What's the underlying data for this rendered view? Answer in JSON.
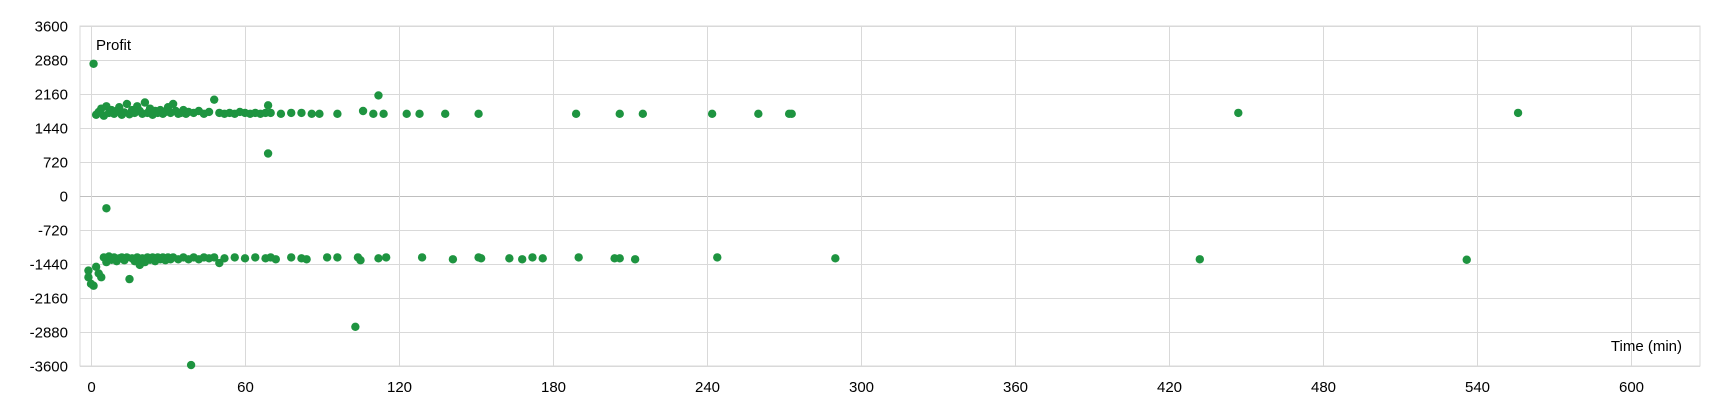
{
  "chart_data": {
    "type": "scatter",
    "title": "",
    "xlabel": "Time (min)",
    "ylabel": "Profit",
    "xlim": [
      -2,
      620
    ],
    "ylim": [
      -3600,
      3600
    ],
    "x_ticks": [
      0,
      60,
      120,
      180,
      240,
      300,
      360,
      420,
      480,
      540,
      600
    ],
    "y_ticks": [
      3600,
      2880,
      2160,
      1440,
      720,
      0,
      -720,
      -1440,
      -2160,
      -2880,
      -3600
    ],
    "grid": true,
    "legend": "none",
    "marker_color": "#1e9440",
    "series": [
      {
        "values": [
          [
            1,
            2800
          ],
          [
            2,
            1720
          ],
          [
            3,
            1780
          ],
          [
            4,
            1850
          ],
          [
            5,
            1700
          ],
          [
            6,
            1900
          ],
          [
            7,
            1760
          ],
          [
            8,
            1820
          ],
          [
            9,
            1740
          ],
          [
            10,
            1800
          ],
          [
            11,
            1880
          ],
          [
            12,
            1720
          ],
          [
            13,
            1770
          ],
          [
            14,
            1950
          ],
          [
            15,
            1730
          ],
          [
            16,
            1820
          ],
          [
            17,
            1760
          ],
          [
            18,
            1900
          ],
          [
            19,
            1800
          ],
          [
            20,
            1740
          ],
          [
            21,
            1980
          ],
          [
            22,
            1760
          ],
          [
            23,
            1850
          ],
          [
            24,
            1720
          ],
          [
            25,
            1800
          ],
          [
            26,
            1760
          ],
          [
            27,
            1820
          ],
          [
            28,
            1740
          ],
          [
            29,
            1780
          ],
          [
            30,
            1880
          ],
          [
            31,
            1760
          ],
          [
            32,
            1950
          ],
          [
            33,
            1800
          ],
          [
            34,
            1740
          ],
          [
            35,
            1760
          ],
          [
            36,
            1820
          ],
          [
            37,
            1740
          ],
          [
            38,
            1780
          ],
          [
            40,
            1760
          ],
          [
            42,
            1800
          ],
          [
            44,
            1740
          ],
          [
            46,
            1780
          ],
          [
            48,
            2040
          ],
          [
            50,
            1760
          ],
          [
            52,
            1740
          ],
          [
            54,
            1760
          ],
          [
            56,
            1740
          ],
          [
            58,
            1780
          ],
          [
            60,
            1760
          ],
          [
            62,
            1740
          ],
          [
            64,
            1760
          ],
          [
            66,
            1740
          ],
          [
            68,
            1760
          ],
          [
            69,
            1920
          ],
          [
            70,
            1760
          ],
          [
            74,
            1740
          ],
          [
            78,
            1760
          ],
          [
            82,
            1760
          ],
          [
            86,
            1740
          ],
          [
            89,
            1740
          ],
          [
            96,
            1740
          ],
          [
            106,
            1800
          ],
          [
            110,
            1740
          ],
          [
            112,
            2130
          ],
          [
            114,
            1740
          ],
          [
            123,
            1740
          ],
          [
            128,
            1740
          ],
          [
            138,
            1740
          ],
          [
            151,
            1740
          ],
          [
            189,
            1740
          ],
          [
            206,
            1740
          ],
          [
            215,
            1740
          ],
          [
            242,
            1740
          ],
          [
            260,
            1740
          ],
          [
            272,
            1740
          ],
          [
            273,
            1740
          ],
          [
            447,
            1760
          ],
          [
            556,
            1760
          ],
          [
            69,
            900
          ],
          [
            6,
            -260
          ],
          [
            -1,
            -1580
          ],
          [
            -1,
            -1720
          ],
          [
            0,
            -1860
          ],
          [
            1,
            -1900
          ],
          [
            2,
            -1500
          ],
          [
            3,
            -1640
          ],
          [
            4,
            -1720
          ],
          [
            5,
            -1300
          ],
          [
            6,
            -1400
          ],
          [
            7,
            -1280
          ],
          [
            8,
            -1350
          ],
          [
            9,
            -1300
          ],
          [
            10,
            -1380
          ],
          [
            11,
            -1320
          ],
          [
            12,
            -1300
          ],
          [
            13,
            -1360
          ],
          [
            14,
            -1300
          ],
          [
            15,
            -1760
          ],
          [
            16,
            -1320
          ],
          [
            17,
            -1380
          ],
          [
            18,
            -1300
          ],
          [
            19,
            -1460
          ],
          [
            20,
            -1320
          ],
          [
            21,
            -1400
          ],
          [
            22,
            -1300
          ],
          [
            23,
            -1350
          ],
          [
            24,
            -1300
          ],
          [
            25,
            -1380
          ],
          [
            26,
            -1300
          ],
          [
            27,
            -1340
          ],
          [
            28,
            -1300
          ],
          [
            29,
            -1360
          ],
          [
            30,
            -1300
          ],
          [
            31,
            -1340
          ],
          [
            32,
            -1300
          ],
          [
            34,
            -1340
          ],
          [
            36,
            -1300
          ],
          [
            38,
            -1340
          ],
          [
            40,
            -1300
          ],
          [
            42,
            -1340
          ],
          [
            44,
            -1300
          ],
          [
            46,
            -1320
          ],
          [
            48,
            -1300
          ],
          [
            50,
            -1420
          ],
          [
            52,
            -1320
          ],
          [
            56,
            -1300
          ],
          [
            60,
            -1320
          ],
          [
            64,
            -1300
          ],
          [
            68,
            -1320
          ],
          [
            70,
            -1300
          ],
          [
            72,
            -1340
          ],
          [
            78,
            -1300
          ],
          [
            82,
            -1320
          ],
          [
            84,
            -1340
          ],
          [
            92,
            -1300
          ],
          [
            96,
            -1300
          ],
          [
            104,
            -1300
          ],
          [
            105,
            -1360
          ],
          [
            112,
            -1320
          ],
          [
            115,
            -1300
          ],
          [
            129,
            -1300
          ],
          [
            141,
            -1340
          ],
          [
            151,
            -1300
          ],
          [
            152,
            -1320
          ],
          [
            163,
            -1320
          ],
          [
            168,
            -1340
          ],
          [
            172,
            -1300
          ],
          [
            176,
            -1320
          ],
          [
            190,
            -1300
          ],
          [
            204,
            -1320
          ],
          [
            206,
            -1320
          ],
          [
            212,
            -1340
          ],
          [
            244,
            -1300
          ],
          [
            290,
            -1320
          ],
          [
            432,
            -1340
          ],
          [
            536,
            -1350
          ],
          [
            103,
            -2770
          ],
          [
            39,
            -3580
          ]
        ]
      }
    ]
  }
}
